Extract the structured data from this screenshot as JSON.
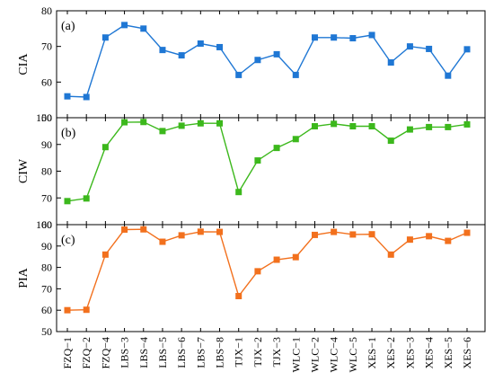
{
  "chart_data": [
    {
      "type": "line",
      "panel_label": "(a)",
      "ylabel": "CIA",
      "ylim": [
        50,
        80
      ],
      "yticks": [
        50,
        60,
        70,
        80
      ],
      "color": "#1f77d4",
      "grid": false,
      "categories": [
        "FZQ−1",
        "FZQ−2",
        "FZQ−4",
        "LBS−3",
        "LBS−4",
        "LBS−5",
        "LBS−6",
        "LBS−7",
        "LBS−8",
        "TJX−1",
        "TJX−2",
        "TJX−3",
        "WLC−1",
        "WLC−2",
        "WLC−4",
        "WLC−5",
        "XES−1",
        "XES−2",
        "XES−3",
        "XES−4",
        "XES−5",
        "XES−6"
      ],
      "values": [
        56,
        55.8,
        72.5,
        76,
        75,
        69,
        67.5,
        70.8,
        69.8,
        62,
        66.2,
        67.8,
        62,
        72.5,
        72.5,
        72.3,
        73.2,
        65.5,
        70,
        69.3,
        61.8,
        69.2
      ]
    },
    {
      "type": "line",
      "panel_label": "(b)",
      "ylabel": "CIW",
      "ylim": [
        60,
        100
      ],
      "yticks": [
        60,
        70,
        80,
        90,
        100
      ],
      "color": "#3cb81c",
      "grid": false,
      "categories": [
        "FZQ−1",
        "FZQ−2",
        "FZQ−4",
        "LBS−3",
        "LBS−4",
        "LBS−5",
        "LBS−6",
        "LBS−7",
        "LBS−8",
        "TJX−1",
        "TJX−2",
        "TJX−3",
        "WLC−1",
        "WLC−2",
        "WLC−4",
        "WLC−5",
        "XES−1",
        "XES−2",
        "XES−3",
        "XES−4",
        "XES−5",
        "XES−6"
      ],
      "values": [
        68.8,
        69.8,
        89,
        98.3,
        98.4,
        95,
        97,
        97.9,
        97.9,
        72.2,
        84,
        88.7,
        92,
        96.8,
        97.7,
        96.8,
        96.8,
        91.4,
        95.6,
        96.5,
        96.5,
        97.5
      ]
    },
    {
      "type": "line",
      "panel_label": "(c)",
      "ylabel": "PIA",
      "ylim": [
        50,
        100
      ],
      "yticks": [
        50,
        60,
        70,
        80,
        90,
        100
      ],
      "color": "#f2701d",
      "grid": false,
      "categories": [
        "FZQ−1",
        "FZQ−2",
        "FZQ−4",
        "LBS−3",
        "LBS−4",
        "LBS−5",
        "LBS−6",
        "LBS−7",
        "LBS−8",
        "TJX−1",
        "TJX−2",
        "TJX−3",
        "WLC−1",
        "WLC−2",
        "WLC−4",
        "WLC−5",
        "XES−1",
        "XES−2",
        "XES−3",
        "XES−4",
        "XES−5",
        "XES−6"
      ],
      "values": [
        60,
        60.2,
        86,
        97.7,
        97.8,
        92,
        95,
        96.7,
        96.6,
        66.6,
        78.2,
        83.6,
        84.8,
        95.2,
        96.6,
        95.4,
        95.5,
        86,
        93,
        94.6,
        92.4,
        96.2
      ]
    }
  ]
}
